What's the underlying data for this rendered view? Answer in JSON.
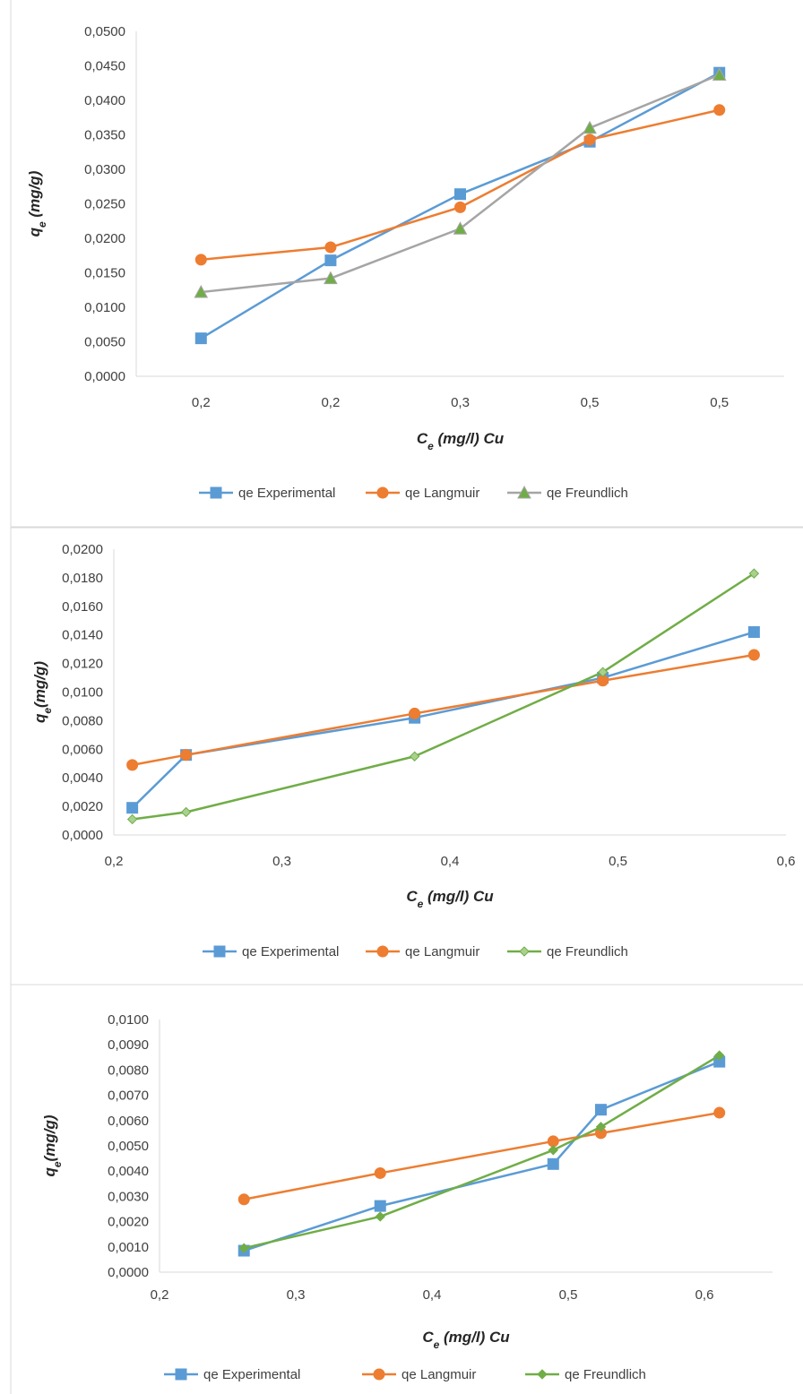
{
  "chart_data": [
    {
      "type": "line",
      "title": "",
      "xlabel": "C_e (mg/l) Cu",
      "ylabel": "q_e (mg/g)",
      "x_axis": "category",
      "categories": [
        "0,2",
        "0,2",
        "0,3",
        "0,5",
        "0,5"
      ],
      "yticks": [
        "0,0000",
        "0,0050",
        "0,0100",
        "0,0150",
        "0,0200",
        "0,0250",
        "0,0300",
        "0,0350",
        "0,0400",
        "0,0450",
        "0,0500"
      ],
      "ylim": [
        0,
        0.05
      ],
      "grid": false,
      "legend": "bottom",
      "series": [
        {
          "name": "qe Experimental",
          "color": "#5B9BD5",
          "marker": "square",
          "values": [
            0.0055,
            0.0168,
            0.0264,
            0.034,
            0.044
          ]
        },
        {
          "name": "qe Langmuir",
          "color": "#ED7D31",
          "marker": "circle",
          "values": [
            0.0169,
            0.0187,
            0.0245,
            0.0343,
            0.0386
          ]
        },
        {
          "name": "qe Freundlich",
          "color": "#A5A5A5",
          "marker": "triangle",
          "marker_fill": "#70AD47",
          "values": [
            0.0122,
            0.0142,
            0.0214,
            0.036,
            0.0437
          ]
        }
      ]
    },
    {
      "type": "line",
      "title": "",
      "xlabel": "C_e (mg/l) Cu",
      "ylabel": "q_e(mg/g)",
      "x_axis": "numeric",
      "xticks": [
        "0,2",
        "0,3",
        "0,4",
        "0,5",
        "0,6"
      ],
      "xlim": [
        0.2,
        0.6
      ],
      "yticks": [
        "0,0000",
        "0,0020",
        "0,0040",
        "0,0060",
        "0,0080",
        "0,0100",
        "0,0120",
        "0,0140",
        "0,0160",
        "0,0180",
        "0,0200"
      ],
      "ylim": [
        0,
        0.02
      ],
      "grid": false,
      "legend": "bottom",
      "x": [
        0.211,
        0.243,
        0.379,
        0.491,
        0.581
      ],
      "series": [
        {
          "name": "qe Experimental",
          "color": "#5B9BD5",
          "marker": "square",
          "values": [
            0.0019,
            0.0056,
            0.0082,
            0.011,
            0.0142
          ]
        },
        {
          "name": "qe Langmuir",
          "color": "#ED7D31",
          "marker": "circle",
          "values": [
            0.0049,
            0.0056,
            0.0085,
            0.0108,
            0.0126
          ]
        },
        {
          "name": "qe Freundlich",
          "color": "#70AD47",
          "marker": "diamond",
          "marker_fill": "#A9D18E",
          "values": [
            0.0011,
            0.0016,
            0.0055,
            0.0114,
            0.0183
          ]
        }
      ]
    },
    {
      "type": "line",
      "title": "",
      "xlabel": "C_e (mg/l) Cu",
      "ylabel": "q_e(mg/g)",
      "x_axis": "numeric",
      "xticks": [
        "0,2",
        "0,3",
        "0,4",
        "0,5",
        "0,6"
      ],
      "xlim": [
        0.2,
        0.65
      ],
      "yticks": [
        "0,0000",
        "0,0010",
        "0,0020",
        "0,0030",
        "0,0040",
        "0,0050",
        "0,0060",
        "0,0070",
        "0,0080",
        "0,0090",
        "0,0100"
      ],
      "ylim": [
        0,
        0.01
      ],
      "grid": false,
      "legend": "bottom",
      "x": [
        0.262,
        0.362,
        0.489,
        0.524,
        0.611
      ],
      "series": [
        {
          "name": "qe Experimental",
          "color": "#5B9BD5",
          "marker": "square",
          "values": [
            0.00085,
            0.00262,
            0.00428,
            0.00643,
            0.00833
          ]
        },
        {
          "name": "qe Langmuir",
          "color": "#ED7D31",
          "marker": "circle",
          "values": [
            0.00288,
            0.00392,
            0.00518,
            0.0055,
            0.00631
          ]
        },
        {
          "name": "qe Freundlich",
          "color": "#70AD47",
          "marker": "diamond",
          "marker_fill": "#70AD47",
          "values": [
            0.00095,
            0.0022,
            0.00483,
            0.00575,
            0.00858
          ]
        }
      ]
    }
  ]
}
